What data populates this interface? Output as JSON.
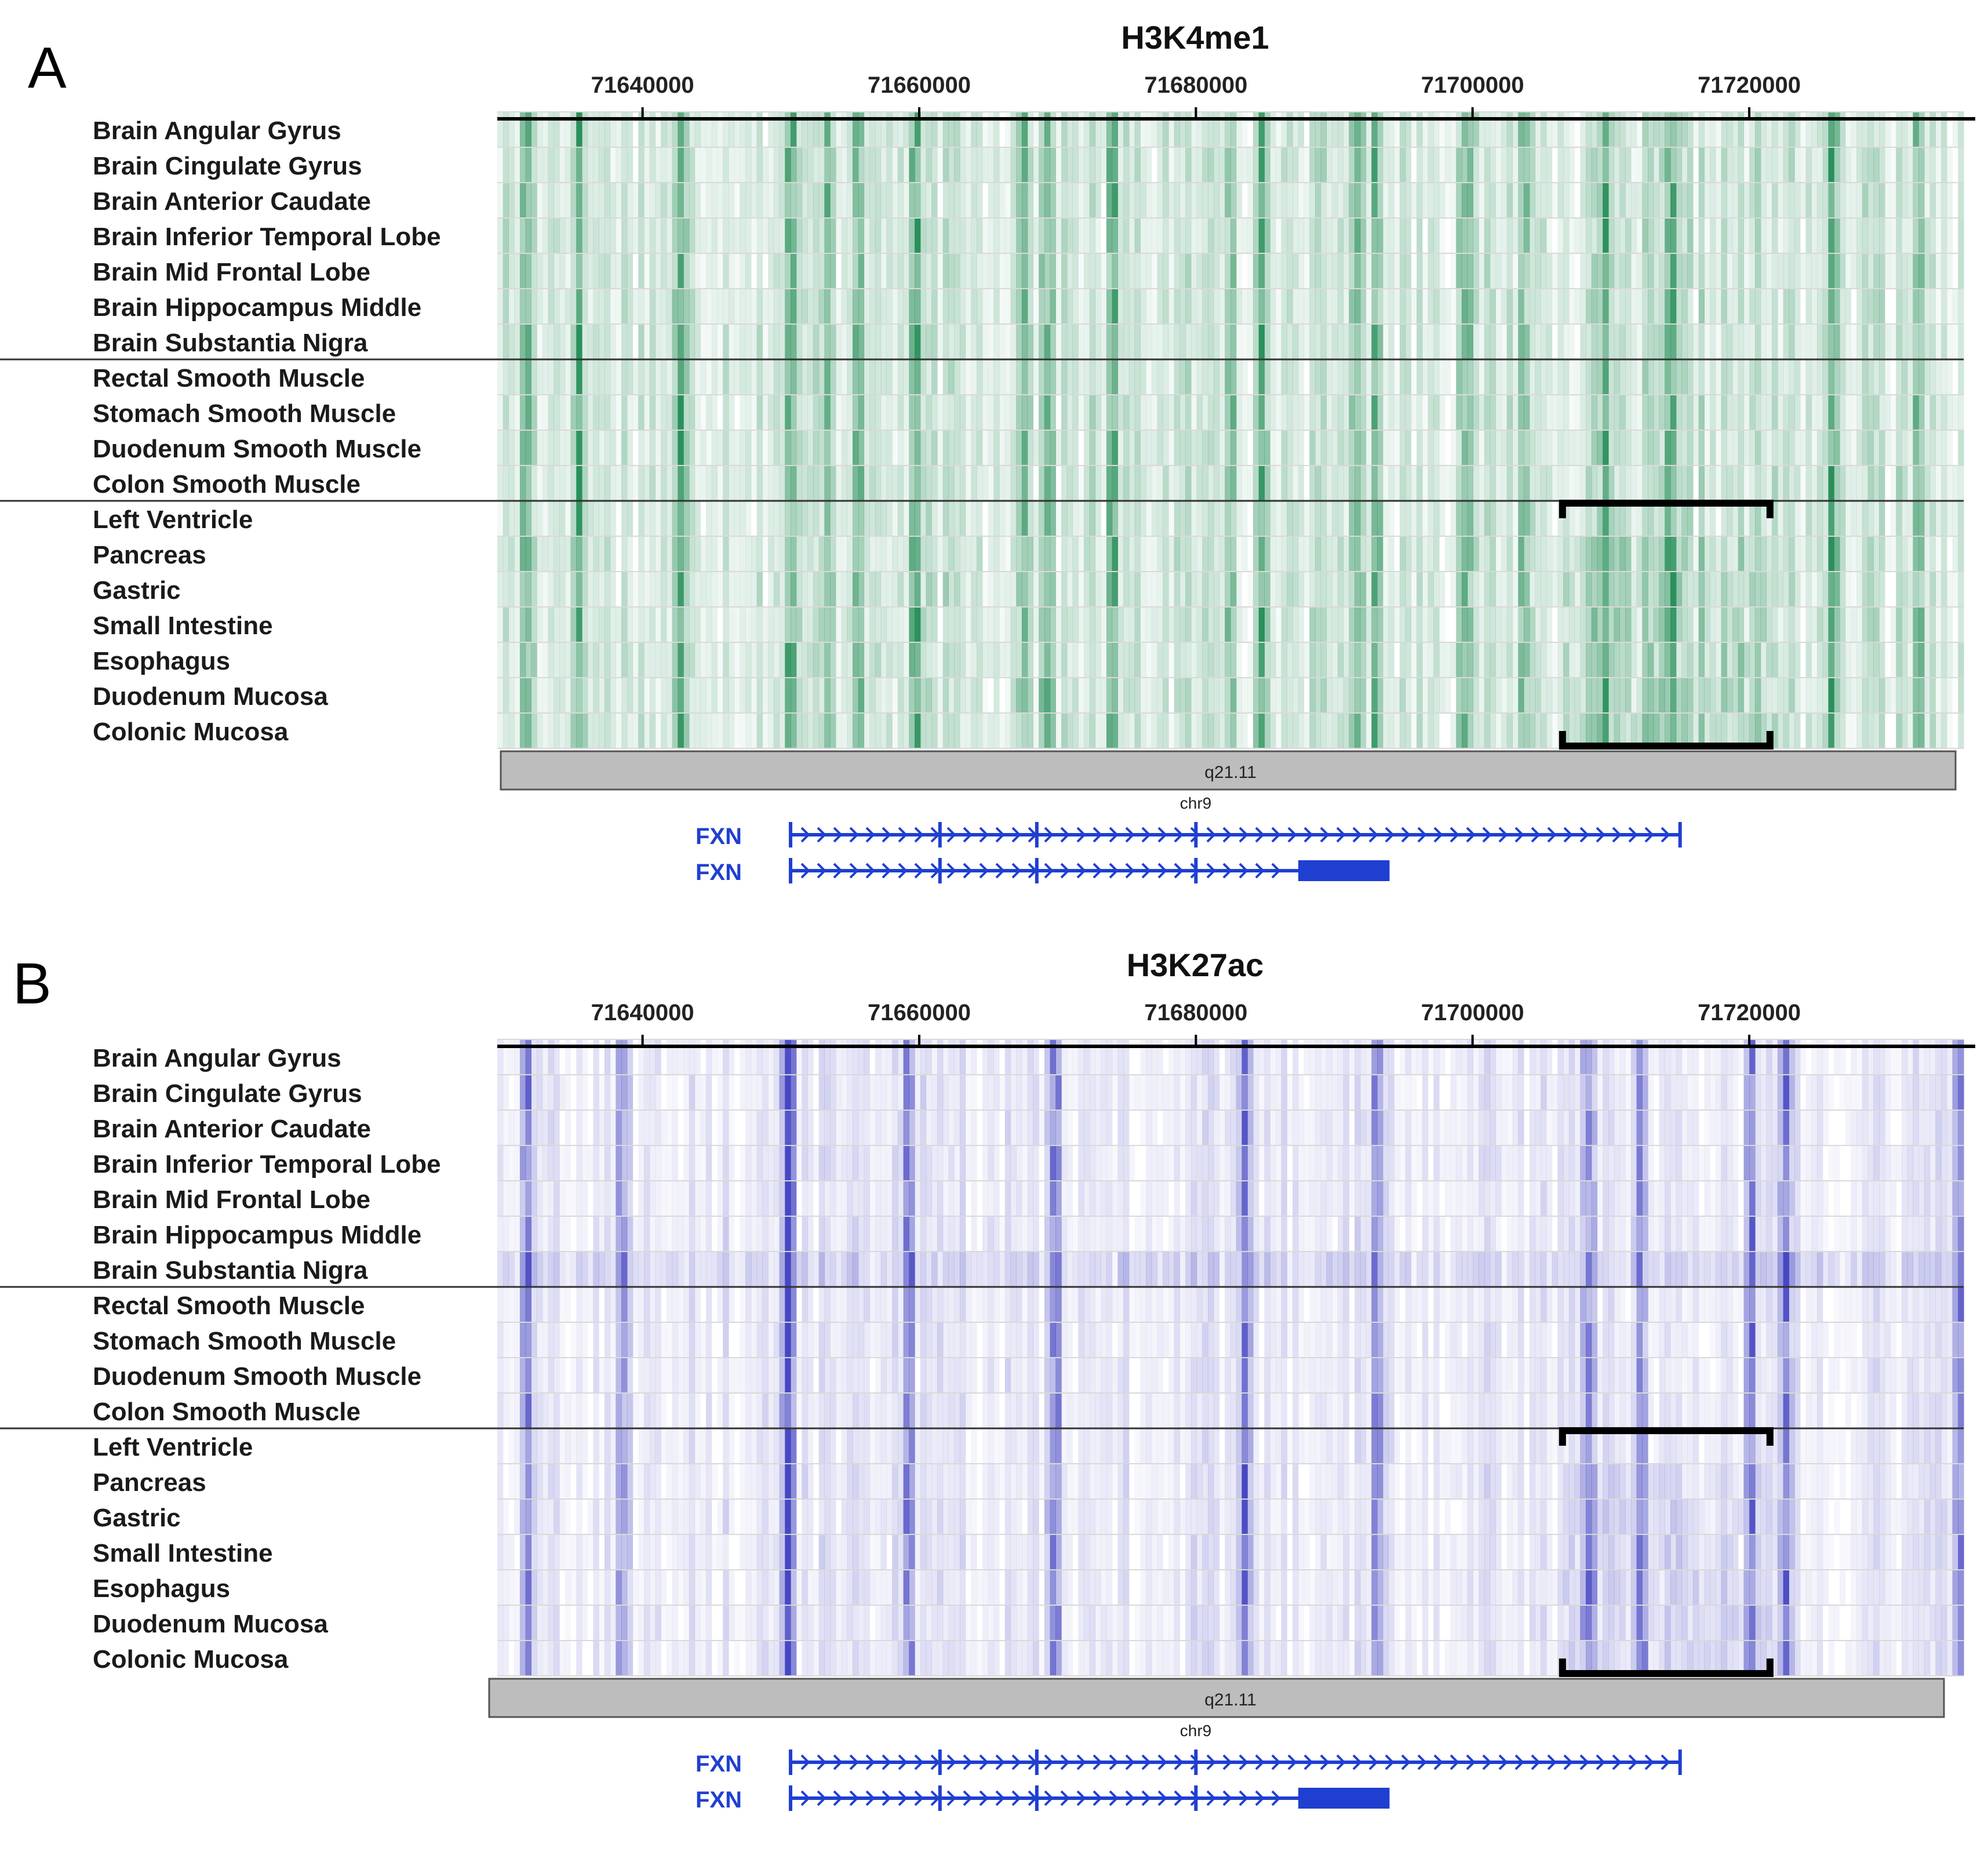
{
  "panels": [
    {
      "letter": "A",
      "title": "H3K4me1",
      "color": "#1f8a52",
      "hotspots": [
        0.02,
        0.055,
        0.125,
        0.2,
        0.225,
        0.245,
        0.285,
        0.36,
        0.375,
        0.42,
        0.5,
        0.52,
        0.585,
        0.6,
        0.66,
        0.7,
        0.755,
        0.8,
        0.91,
        0.97
      ]
    },
    {
      "letter": "B",
      "title": "H3K27ac",
      "color": "#3d3dbf",
      "hotspots": [
        0.02,
        0.085,
        0.197,
        0.2,
        0.28,
        0.38,
        0.51,
        0.6,
        0.745,
        0.78,
        0.855,
        0.878,
        0.997
      ]
    }
  ],
  "axis": {
    "ticks": [
      "71640000",
      "71660000",
      "71680000",
      "71700000",
      "71720000"
    ],
    "ticks_values": [
      71640000,
      71660000,
      71680000,
      71700000,
      71720000
    ],
    "xlim": [
      71629500,
      71735500
    ]
  },
  "tracks": [
    "Brain Angular Gyrus",
    "Brain Cingulate Gyrus",
    "Brain Anterior Caudate",
    "Brain Inferior Temporal Lobe",
    "Brain Mid Frontal Lobe",
    "Brain Hippocampus Middle",
    "Brain Substantia Nigra",
    "Rectal Smooth Muscle",
    "Stomach Smooth Muscle",
    "Duodenum Smooth Muscle",
    "Colon Smooth Muscle",
    "Left Ventricle",
    "Pancreas",
    "Gastric",
    "Small Intestine",
    "Esophagus",
    "Duodenum Mucosa",
    "Colonic Mucosa"
  ],
  "groups": [
    {
      "name": "brain",
      "rows": [
        0,
        6
      ]
    },
    {
      "name": "smooth-muscle",
      "rows": [
        7,
        10
      ]
    },
    {
      "name": "other",
      "rows": [
        11,
        17
      ]
    }
  ],
  "bracket": {
    "start": 71706500,
    "end": 71721500,
    "rows": [
      11,
      17
    ]
  },
  "ideogram": {
    "band": "q21.11",
    "chrom": "chr9"
  },
  "genes": [
    {
      "name": "FXN",
      "start": 71650700,
      "end": 71715000,
      "exons": [
        71650700,
        71661500,
        71668500,
        71680000,
        71715000
      ],
      "thick": null
    },
    {
      "name": "FXN",
      "start": 71650700,
      "end": 71687500,
      "exons": [
        71650700,
        71661500,
        71668500,
        71680000
      ],
      "thick": [
        71687400,
        71694000
      ]
    }
  ],
  "chart_data": [
    {
      "type": "heatmap",
      "title": "H3K4me1",
      "xlabel": "",
      "ylabel": "",
      "x_ticks": [
        71640000,
        71660000,
        71680000,
        71700000,
        71720000
      ],
      "xlim": [
        71629500,
        71735500
      ],
      "rows": [
        "Brain Angular Gyrus",
        "Brain Cingulate Gyrus",
        "Brain Anterior Caudate",
        "Brain Inferior Temporal Lobe",
        "Brain Mid Frontal Lobe",
        "Brain Hippocampus Middle",
        "Brain Substantia Nigra",
        "Rectal Smooth Muscle",
        "Stomach Smooth Muscle",
        "Duodenum Smooth Muscle",
        "Colon Smooth Muscle",
        "Left Ventricle",
        "Pancreas",
        "Gastric",
        "Small Intestine",
        "Esophagus",
        "Duodenum Mucosa",
        "Colonic Mucosa"
      ],
      "colormap": "white-to-green"
    },
    {
      "type": "heatmap",
      "title": "H3K27ac",
      "xlabel": "",
      "ylabel": "",
      "x_ticks": [
        71640000,
        71660000,
        71680000,
        71700000,
        71720000
      ],
      "xlim": [
        71629500,
        71735500
      ],
      "rows": [
        "Brain Angular Gyrus",
        "Brain Cingulate Gyrus",
        "Brain Anterior Caudate",
        "Brain Inferior Temporal Lobe",
        "Brain Mid Frontal Lobe",
        "Brain Hippocampus Middle",
        "Brain Substantia Nigra",
        "Rectal Smooth Muscle",
        "Stomach Smooth Muscle",
        "Duodenum Smooth Muscle",
        "Colon Smooth Muscle",
        "Left Ventricle",
        "Pancreas",
        "Gastric",
        "Small Intestine",
        "Esophagus",
        "Duodenum Mucosa",
        "Colonic Mucosa"
      ],
      "colormap": "white-to-blue"
    }
  ]
}
